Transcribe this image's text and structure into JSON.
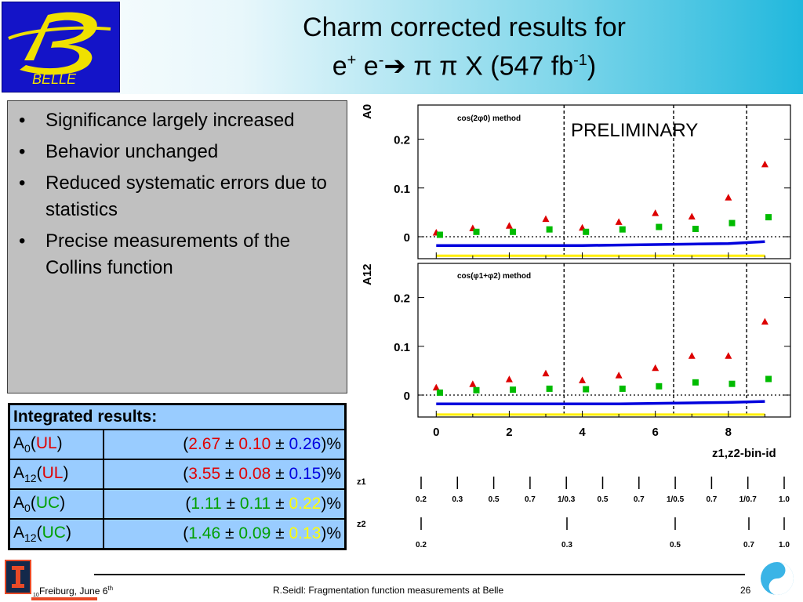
{
  "header": {
    "logo_text": "BELLE",
    "title_line1": "Charm corrected results for",
    "title_line2": {
      "e1": "e",
      "sup1": "+",
      "e2": " e",
      "sup2": "-",
      "rest": " π π X (547 fb",
      "sup3": "-1",
      "close": ")"
    }
  },
  "bullets": [
    "Significance largely increased",
    "Behavior unchanged",
    "Reduced systematic errors due to statistics",
    "Precise measurements of the Collins function"
  ],
  "results": {
    "header": "Integrated results:",
    "rows": [
      {
        "name": "A",
        "sub": "0",
        "tag": "UL",
        "open": "(",
        "v1": "2.67",
        "pm1": " ± ",
        "v2": "0.10",
        "pm2": " ± ",
        "v3": "0.26",
        "close": ")%"
      },
      {
        "name": "A",
        "sub": "12",
        "tag": "UL",
        "open": "(",
        "v1": "3.55",
        "pm1": " ± ",
        "v2": "0.08",
        "pm2": " ± ",
        "v3": "0.15",
        "close": ")%"
      },
      {
        "name": "A",
        "sub": "0",
        "tag": "UC",
        "open": "(",
        "v1": "1.11",
        "pm1": " ± ",
        "v2": "0.11",
        "pm2": " ± ",
        "v3": "0.22",
        "close": ")%"
      },
      {
        "name": "A",
        "sub": "12",
        "tag": "UC",
        "open": "(",
        "v1": "1.46",
        "pm1": " ± ",
        "v2": "0.09",
        "pm2": " ± ",
        "v3": "0.13",
        "close": ")%"
      }
    ]
  },
  "preliminary": "PRELIMINARY",
  "chart_data": [
    {
      "type": "scatter",
      "panel": "top",
      "method_label": "cos(2φ0) method",
      "ylabel": "A0",
      "yticks": [
        "0.2",
        "0.1",
        "0"
      ],
      "ylim": [
        -0.045,
        0.27
      ],
      "xlim": [
        -0.5,
        9.7
      ],
      "series": [
        {
          "name": "UL",
          "marker": "triangle",
          "color": "#dd0000",
          "x": [
            0,
            1,
            2,
            3,
            4,
            5,
            6,
            7,
            8,
            9
          ],
          "y": [
            0.008,
            0.017,
            0.022,
            0.036,
            0.018,
            0.03,
            0.048,
            0.041,
            0.08,
            0.148
          ]
        },
        {
          "name": "UC",
          "marker": "square",
          "color": "#00bb00",
          "x": [
            0.1,
            1.1,
            2.1,
            3.1,
            4.1,
            5.1,
            6.1,
            7.1,
            8.1,
            9.1
          ],
          "y": [
            0.004,
            0.01,
            0.01,
            0.015,
            0.01,
            0.015,
            0.02,
            0.016,
            0.028,
            0.04
          ]
        }
      ],
      "bands": [
        {
          "color": "#0000dd",
          "y": [
            -0.018,
            -0.018,
            -0.018,
            -0.018,
            -0.018,
            -0.017,
            -0.016,
            -0.015,
            -0.014,
            -0.01
          ]
        },
        {
          "color": "#ffee00",
          "y": [
            -0.039,
            -0.039,
            -0.039,
            -0.039,
            -0.039,
            -0.039,
            -0.039,
            -0.039,
            -0.039,
            -0.039
          ]
        }
      ],
      "dividers_x": [
        3.5,
        6.5,
        8.5
      ]
    },
    {
      "type": "scatter",
      "panel": "bottom",
      "method_label": "cos(φ1+φ2) method",
      "ylabel": "A12",
      "yticks": [
        "0.2",
        "0.1",
        "0"
      ],
      "ylim": [
        -0.045,
        0.27
      ],
      "xlim": [
        -0.5,
        9.7
      ],
      "xticks": [
        "0",
        "2",
        "4",
        "6",
        "8"
      ],
      "xlabel": "z1,z2-bin-id",
      "series": [
        {
          "name": "UL",
          "marker": "triangle",
          "color": "#dd0000",
          "x": [
            0,
            1,
            2,
            3,
            4,
            5,
            6,
            7,
            8,
            9
          ],
          "y": [
            0.015,
            0.022,
            0.032,
            0.044,
            0.03,
            0.04,
            0.055,
            0.08,
            0.08,
            0.15
          ]
        },
        {
          "name": "UC",
          "marker": "square",
          "color": "#00bb00",
          "x": [
            0.1,
            1.1,
            2.1,
            3.1,
            4.1,
            5.1,
            6.1,
            7.1,
            8.1,
            9.1
          ],
          "y": [
            0.005,
            0.01,
            0.011,
            0.013,
            0.012,
            0.013,
            0.018,
            0.026,
            0.023,
            0.033
          ]
        }
      ],
      "bands": [
        {
          "color": "#0000dd",
          "y": [
            -0.018,
            -0.018,
            -0.018,
            -0.018,
            -0.018,
            -0.018,
            -0.017,
            -0.016,
            -0.015,
            -0.013
          ]
        },
        {
          "color": "#ffee00",
          "y": [
            -0.04,
            -0.04,
            -0.04,
            -0.04,
            -0.04,
            -0.04,
            -0.04,
            -0.04,
            -0.04,
            -0.04
          ]
        }
      ],
      "dividers_x": [
        3.5,
        6.5,
        8.5
      ]
    }
  ],
  "z_axes": {
    "z1_label": "z1",
    "z2_label": "z2",
    "z1_ticks": [
      "0.2",
      "0.3",
      "0.5",
      "0.7",
      "1/0.3",
      "0.5",
      "0.7",
      "1/0.5",
      "0.7",
      "1/0.7",
      "1.0"
    ],
    "z2_ticks": [
      "0.2",
      "0.3",
      "0.5",
      "0.7",
      "1.0"
    ]
  },
  "footer": {
    "place": "Freiburg, June 6",
    "place_sup": "th",
    "tiny": "10",
    "center": "R.Seidl: Fragmentation function measurements at Belle",
    "page": "26"
  }
}
